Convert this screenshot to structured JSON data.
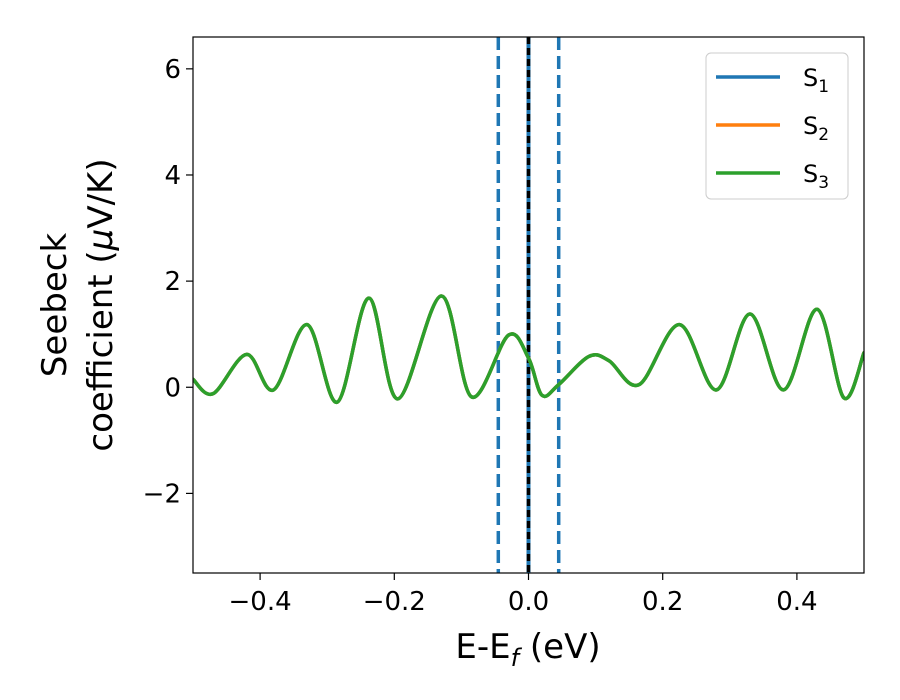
{
  "chart_data": {
    "type": "line",
    "xlabel": "E-E",
    "xlabel_sub": "f",
    "xlabel_unit": " (eV)",
    "ylabel_line1": "Seebeck",
    "ylabel_line2": "coefficient  (",
    "ylabel_mu": "μ",
    "ylabel_unit": "V/K)",
    "xlim": [
      -0.5,
      0.5
    ],
    "ylim": [
      -3.5,
      6.6
    ],
    "x_ticks": [
      -0.4,
      -0.2,
      0.0,
      0.2,
      0.4
    ],
    "x_tick_labels": [
      "−0.4",
      "−0.2",
      "0.0",
      "0.2",
      "0.4"
    ],
    "y_ticks": [
      -2,
      0,
      2,
      4,
      6
    ],
    "y_tick_labels": [
      "−2",
      "0",
      "2",
      "4",
      "6"
    ],
    "grid": false,
    "legend_position": "top-right",
    "vertical_lines": [
      {
        "x": -0.045,
        "style": "dashed",
        "color": "#1f77b4"
      },
      {
        "x": 0.045,
        "style": "dashed",
        "color": "#1f77b4"
      },
      {
        "x": 0.0,
        "style": "solid",
        "color": "#1f77b4"
      },
      {
        "x": 0.0,
        "style": "dashed",
        "color": "#000000"
      }
    ],
    "series": [
      {
        "name": "S",
        "sub": "1",
        "color": "#1f77b4",
        "x": [
          -0.5,
          -0.47,
          -0.42,
          -0.38,
          -0.33,
          -0.285,
          -0.238,
          -0.195,
          -0.13,
          -0.085,
          -0.03,
          0.0,
          0.02,
          0.045,
          0.09,
          0.12,
          0.165,
          0.225,
          0.28,
          0.33,
          0.38,
          0.43,
          0.47,
          0.5
        ],
        "y": [
          0.15,
          -0.12,
          0.62,
          -0.05,
          1.18,
          -0.28,
          1.68,
          -0.22,
          1.72,
          -0.18,
          0.98,
          0.55,
          -0.15,
          0.05,
          0.58,
          0.5,
          0.05,
          1.18,
          -0.05,
          1.38,
          -0.05,
          1.47,
          -0.2,
          0.65
        ]
      },
      {
        "name": "S",
        "sub": "2",
        "color": "#ff7f0e",
        "x": [
          -0.5,
          -0.47,
          -0.42,
          -0.38,
          -0.33,
          -0.285,
          -0.238,
          -0.195,
          -0.13,
          -0.085,
          -0.03,
          0.0,
          0.02,
          0.045,
          0.09,
          0.12,
          0.165,
          0.225,
          0.28,
          0.33,
          0.38,
          0.43,
          0.47,
          0.5
        ],
        "y": [
          0.15,
          -0.12,
          0.62,
          -0.05,
          1.18,
          -0.28,
          1.68,
          -0.22,
          1.72,
          -0.18,
          0.98,
          0.55,
          -0.15,
          0.05,
          0.58,
          0.5,
          0.05,
          1.18,
          -0.05,
          1.38,
          -0.05,
          1.47,
          -0.2,
          0.65
        ]
      },
      {
        "name": "S",
        "sub": "3",
        "color": "#2ca02c",
        "x": [
          -0.5,
          -0.47,
          -0.42,
          -0.38,
          -0.33,
          -0.285,
          -0.238,
          -0.195,
          -0.13,
          -0.085,
          -0.03,
          0.0,
          0.02,
          0.045,
          0.09,
          0.12,
          0.165,
          0.225,
          0.28,
          0.33,
          0.38,
          0.43,
          0.47,
          0.5
        ],
        "y": [
          0.15,
          -0.12,
          0.62,
          -0.05,
          1.18,
          -0.28,
          1.68,
          -0.22,
          1.72,
          -0.18,
          0.98,
          0.55,
          -0.15,
          0.05,
          0.58,
          0.5,
          0.05,
          1.18,
          -0.05,
          1.38,
          -0.05,
          1.47,
          -0.2,
          0.65
        ]
      }
    ]
  }
}
